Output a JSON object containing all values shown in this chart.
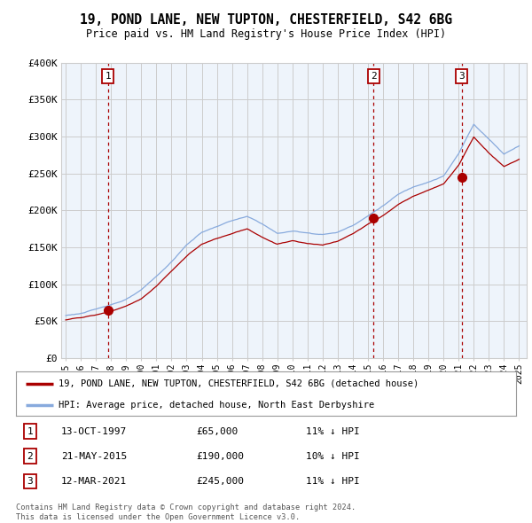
{
  "title": "19, POND LANE, NEW TUPTON, CHESTERFIELD, S42 6BG",
  "subtitle": "Price paid vs. HM Land Registry's House Price Index (HPI)",
  "ylim": [
    0,
    400000
  ],
  "yticks": [
    0,
    50000,
    100000,
    150000,
    200000,
    250000,
    300000,
    350000,
    400000
  ],
  "ytick_labels": [
    "£0",
    "£50K",
    "£100K",
    "£150K",
    "£200K",
    "£250K",
    "£300K",
    "£350K",
    "£400K"
  ],
  "transactions": [
    {
      "label": "1",
      "year": 1997.79,
      "value": 65000,
      "date": "13-OCT-1997",
      "price": "£65,000",
      "hpi_pct": "11% ↓ HPI"
    },
    {
      "label": "2",
      "year": 2015.38,
      "value": 190000,
      "date": "21-MAY-2015",
      "price": "£190,000",
      "hpi_pct": "10% ↓ HPI"
    },
    {
      "label": "3",
      "year": 2021.19,
      "value": 245000,
      "date": "12-MAR-2021",
      "price": "£245,000",
      "hpi_pct": "11% ↓ HPI"
    }
  ],
  "legend_line1": "19, POND LANE, NEW TUPTON, CHESTERFIELD, S42 6BG (detached house)",
  "legend_line2": "HPI: Average price, detached house, North East Derbyshire",
  "footer1": "Contains HM Land Registry data © Crown copyright and database right 2024.",
  "footer2": "This data is licensed under the Open Government Licence v3.0.",
  "red_color": "#aa0000",
  "blue_color": "#88aadd",
  "grid_color": "#cccccc",
  "chart_bg": "#eef4fb",
  "background_color": "#ffffff",
  "xlim": [
    1994.7,
    2025.5
  ],
  "xtick_years": [
    1995,
    1996,
    1997,
    1998,
    1999,
    2000,
    2001,
    2002,
    2003,
    2004,
    2005,
    2006,
    2007,
    2008,
    2009,
    2010,
    2011,
    2012,
    2013,
    2014,
    2015,
    2016,
    2017,
    2018,
    2019,
    2020,
    2021,
    2022,
    2023,
    2024,
    2025
  ]
}
